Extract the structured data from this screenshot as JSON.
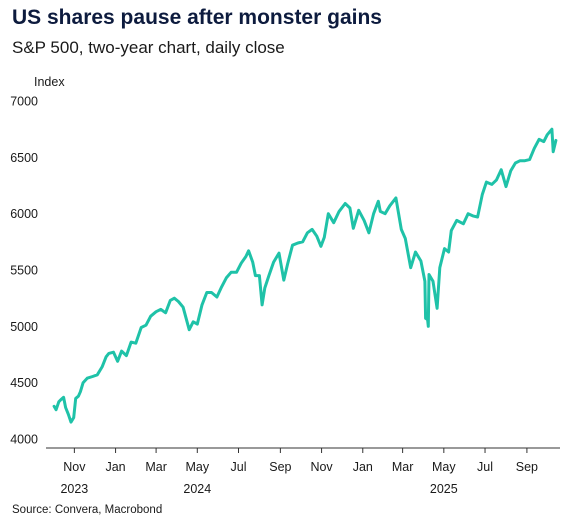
{
  "header": {
    "title": "US shares pause after monster gains",
    "subtitle": "S&P 500, two-year chart, daily close"
  },
  "footer": {
    "source": "Source: Convera, Macrobond"
  },
  "chart_data": {
    "type": "line",
    "ylabel": "Index",
    "ylim": [
      4000,
      7000
    ],
    "yticks": [
      4000,
      4500,
      5000,
      5500,
      6000,
      6500,
      7000
    ],
    "xlim": [
      "2023-09-20",
      "2025-10-20"
    ],
    "xticks": [
      {
        "date": "2023-11-01",
        "label": "Nov"
      },
      {
        "date": "2024-01-01",
        "label": "Jan"
      },
      {
        "date": "2024-03-01",
        "label": "Mar"
      },
      {
        "date": "2024-05-01",
        "label": "May"
      },
      {
        "date": "2024-07-01",
        "label": "Jul"
      },
      {
        "date": "2024-09-01",
        "label": "Sep"
      },
      {
        "date": "2024-11-01",
        "label": "Nov"
      },
      {
        "date": "2025-01-01",
        "label": "Jan"
      },
      {
        "date": "2025-03-01",
        "label": "Mar"
      },
      {
        "date": "2025-05-01",
        "label": "May"
      },
      {
        "date": "2025-07-01",
        "label": "Jul"
      },
      {
        "date": "2025-09-01",
        "label": "Sep"
      }
    ],
    "year_labels": [
      {
        "date": "2023-11-01",
        "label": "2023"
      },
      {
        "date": "2024-05-01",
        "label": "2024"
      },
      {
        "date": "2025-05-01",
        "label": "2025"
      }
    ],
    "grid": false,
    "line_color": "#1fc2a8",
    "series": [
      {
        "x": [
          "2023-10-02",
          "2023-10-05",
          "2023-10-09",
          "2023-10-12",
          "2023-10-16",
          "2023-10-19",
          "2023-10-23",
          "2023-10-27",
          "2023-10-31",
          "2023-11-03",
          "2023-11-07",
          "2023-11-10",
          "2023-11-14",
          "2023-11-20",
          "2023-11-28",
          "2023-12-05",
          "2023-12-12",
          "2023-12-18",
          "2023-12-22",
          "2023-12-29",
          "2024-01-04",
          "2024-01-10",
          "2024-01-17",
          "2024-01-24",
          "2024-01-31",
          "2024-02-08",
          "2024-02-15",
          "2024-02-22",
          "2024-03-01",
          "2024-03-08",
          "2024-03-15",
          "2024-03-22",
          "2024-03-28",
          "2024-04-03",
          "2024-04-10",
          "2024-04-19",
          "2024-04-25",
          "2024-05-01",
          "2024-05-08",
          "2024-05-15",
          "2024-05-22",
          "2024-05-30",
          "2024-06-06",
          "2024-06-13",
          "2024-06-20",
          "2024-06-28",
          "2024-07-05",
          "2024-07-12",
          "2024-07-16",
          "2024-07-22",
          "2024-07-26",
          "2024-08-01",
          "2024-08-05",
          "2024-08-09",
          "2024-08-15",
          "2024-08-22",
          "2024-08-30",
          "2024-09-06",
          "2024-09-12",
          "2024-09-19",
          "2024-09-27",
          "2024-10-04",
          "2024-10-11",
          "2024-10-18",
          "2024-10-25",
          "2024-10-31",
          "2024-11-05",
          "2024-11-11",
          "2024-11-19",
          "2024-11-27",
          "2024-12-06",
          "2024-12-13",
          "2024-12-18",
          "2024-12-26",
          "2025-01-03",
          "2025-01-10",
          "2025-01-17",
          "2025-01-24",
          "2025-01-27",
          "2025-02-03",
          "2025-02-10",
          "2025-02-19",
          "2025-02-27",
          "2025-03-05",
          "2025-03-13",
          "2025-03-20",
          "2025-03-28",
          "2025-04-03",
          "2025-04-04",
          "2025-04-07",
          "2025-04-08",
          "2025-04-09",
          "2025-04-15",
          "2025-04-21",
          "2025-04-25",
          "2025-05-02",
          "2025-05-08",
          "2025-05-12",
          "2025-05-20",
          "2025-05-30",
          "2025-06-06",
          "2025-06-13",
          "2025-06-20",
          "2025-06-27",
          "2025-07-03",
          "2025-07-11",
          "2025-07-18",
          "2025-07-25",
          "2025-08-01",
          "2025-08-08",
          "2025-08-15",
          "2025-08-22",
          "2025-08-29",
          "2025-09-05",
          "2025-09-12",
          "2025-09-19",
          "2025-09-26",
          "2025-10-01",
          "2025-10-08",
          "2025-10-10",
          "2025-10-14"
        ],
        "values": [
          4290,
          4260,
          4330,
          4350,
          4370,
          4280,
          4220,
          4150,
          4190,
          4360,
          4380,
          4420,
          4500,
          4540,
          4555,
          4570,
          4640,
          4730,
          4760,
          4770,
          4690,
          4780,
          4740,
          4860,
          4850,
          4990,
          5010,
          5090,
          5130,
          5150,
          5120,
          5230,
          5250,
          5220,
          5170,
          4970,
          5040,
          5020,
          5190,
          5300,
          5300,
          5260,
          5350,
          5430,
          5480,
          5480,
          5560,
          5620,
          5670,
          5570,
          5450,
          5450,
          5190,
          5340,
          5450,
          5570,
          5650,
          5410,
          5560,
          5720,
          5740,
          5750,
          5830,
          5860,
          5800,
          5710,
          5790,
          6000,
          5920,
          6020,
          6090,
          6050,
          5870,
          6030,
          5940,
          5830,
          6000,
          6110,
          6020,
          6000,
          6070,
          6140,
          5860,
          5780,
          5520,
          5660,
          5580,
          5400,
          5070,
          5060,
          5000,
          5460,
          5400,
          5160,
          5520,
          5690,
          5660,
          5850,
          5940,
          5910,
          6000,
          5980,
          5970,
          6170,
          6280,
          6260,
          6300,
          6390,
          6240,
          6380,
          6450,
          6470,
          6470,
          6480,
          6580,
          6660,
          6640,
          6700,
          6750,
          6550,
          6650
        ]
      }
    ]
  }
}
